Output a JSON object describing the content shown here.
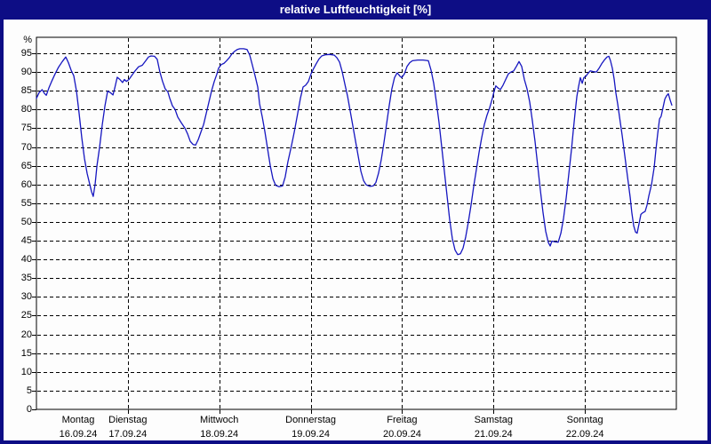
{
  "window": {
    "title": "relative Luftfeuchtigkeit [%]"
  },
  "colors": {
    "title_bar": "#0d0d85",
    "title_text": "#ffffff",
    "window_border": "#0d0d85",
    "background": "#fdfdfd",
    "grid": "#000000",
    "plot_line": "#1616c0"
  },
  "chart_data": {
    "type": "line",
    "title": "relative Luftfeuchtigkeit [%]",
    "ylabel": "%",
    "ylim": [
      0,
      95
    ],
    "ytick_step": 5,
    "yticks": [
      0,
      5,
      10,
      15,
      20,
      25,
      30,
      35,
      40,
      45,
      50,
      55,
      60,
      65,
      70,
      75,
      80,
      85,
      90,
      95
    ],
    "grid_style": "dashed",
    "legend": "none",
    "x_range_hours": [
      0,
      168
    ],
    "x_days": [
      {
        "name": "Montag",
        "date": "16.09.24"
      },
      {
        "name": "Dienstag",
        "date": "17.09.24"
      },
      {
        "name": "Mittwoch",
        "date": "18.09.24"
      },
      {
        "name": "Donnerstag",
        "date": "19.09.24"
      },
      {
        "name": "Freitag",
        "date": "20.09.24"
      },
      {
        "name": "Samstag",
        "date": "21.09.24"
      },
      {
        "name": "Sonntag",
        "date": "22.09.24"
      }
    ],
    "series": [
      {
        "name": "relative Luftfeuchtigkeit [%]",
        "color": "#1616c0",
        "points_hours_percent": [
          [
            0,
            83
          ],
          [
            0.7,
            84.5
          ],
          [
            1.5,
            85.3
          ],
          [
            2.1,
            84.3
          ],
          [
            2.6,
            83.8
          ],
          [
            3.3,
            85.8
          ],
          [
            4,
            87.5
          ],
          [
            4.9,
            89.5
          ],
          [
            5.8,
            91.3
          ],
          [
            6.8,
            92.8
          ],
          [
            7.7,
            94
          ],
          [
            8.4,
            92.5
          ],
          [
            9.1,
            90.5
          ],
          [
            9.8,
            89
          ],
          [
            10.5,
            85
          ],
          [
            11.2,
            79
          ],
          [
            11.9,
            72.5
          ],
          [
            12.6,
            67
          ],
          [
            13.3,
            63
          ],
          [
            14,
            60
          ],
          [
            14.5,
            58
          ],
          [
            14.9,
            56.8
          ],
          [
            15.4,
            60
          ],
          [
            15.9,
            65
          ],
          [
            16.6,
            70
          ],
          [
            17.3,
            76
          ],
          [
            18,
            81
          ],
          [
            18.7,
            84.9
          ],
          [
            19.4,
            84.5
          ],
          [
            20.1,
            83.9
          ],
          [
            20.5,
            85.5
          ],
          [
            21.2,
            88.6
          ],
          [
            21.9,
            88
          ],
          [
            22.6,
            87.2
          ],
          [
            23.1,
            88
          ],
          [
            23.6,
            87.5
          ],
          [
            24.3,
            88
          ],
          [
            25,
            89
          ],
          [
            25.9,
            90.3
          ],
          [
            26.8,
            91.4
          ],
          [
            27.8,
            91.8
          ],
          [
            28.7,
            93
          ],
          [
            29.4,
            94
          ],
          [
            30.1,
            94.3
          ],
          [
            31,
            94.2
          ],
          [
            31.7,
            93.4
          ],
          [
            32.4,
            90
          ],
          [
            33.1,
            87.5
          ],
          [
            33.8,
            85.5
          ],
          [
            34.5,
            84.7
          ],
          [
            35,
            83
          ],
          [
            35.7,
            81
          ],
          [
            36.4,
            80
          ],
          [
            37.1,
            78
          ],
          [
            38,
            76.5
          ],
          [
            39,
            75
          ],
          [
            39.7,
            73.5
          ],
          [
            40.4,
            71.5
          ],
          [
            41.1,
            70.7
          ],
          [
            41.8,
            70.5
          ],
          [
            42.5,
            72
          ],
          [
            43.2,
            74
          ],
          [
            43.9,
            76
          ],
          [
            44.6,
            79
          ],
          [
            45.3,
            82
          ],
          [
            46,
            85
          ],
          [
            46.7,
            87.5
          ],
          [
            47.4,
            89.5
          ],
          [
            47.8,
            91
          ],
          [
            48.5,
            92
          ],
          [
            49.2,
            92.3
          ],
          [
            49.9,
            93
          ],
          [
            50.6,
            93.8
          ],
          [
            51.3,
            94.8
          ],
          [
            52,
            95.5
          ],
          [
            52.7,
            96
          ],
          [
            53.4,
            96.2
          ],
          [
            54.4,
            96.2
          ],
          [
            55.3,
            96
          ],
          [
            56,
            94.5
          ],
          [
            56.7,
            91.8
          ],
          [
            57.4,
            89
          ],
          [
            58.1,
            86
          ],
          [
            58.6,
            81.5
          ],
          [
            59.3,
            78
          ],
          [
            60,
            74
          ],
          [
            60.7,
            69.5
          ],
          [
            61.4,
            65
          ],
          [
            62.1,
            61.5
          ],
          [
            62.8,
            59.8
          ],
          [
            63.7,
            59.4
          ],
          [
            64.6,
            59.6
          ],
          [
            65.3,
            62
          ],
          [
            66,
            66
          ],
          [
            67,
            70.5
          ],
          [
            67.7,
            74
          ],
          [
            68.6,
            79
          ],
          [
            69.3,
            83
          ],
          [
            70,
            86
          ],
          [
            70.7,
            86.5
          ],
          [
            71.4,
            87.5
          ],
          [
            72.1,
            89.5
          ],
          [
            72.8,
            91
          ],
          [
            73.5,
            92.3
          ],
          [
            74.2,
            93.5
          ],
          [
            74.9,
            94.3
          ],
          [
            75.8,
            94.6
          ],
          [
            77,
            94.7
          ],
          [
            78.2,
            94.5
          ],
          [
            78.9,
            93.8
          ],
          [
            79.6,
            92.6
          ],
          [
            80.3,
            90
          ],
          [
            81,
            86.7
          ],
          [
            81.7,
            83.5
          ],
          [
            82.4,
            79.5
          ],
          [
            83.1,
            75.5
          ],
          [
            83.8,
            71.5
          ],
          [
            84.5,
            67.5
          ],
          [
            85.2,
            63.5
          ],
          [
            85.9,
            61
          ],
          [
            86.6,
            59.9
          ],
          [
            87.5,
            59.5
          ],
          [
            88.4,
            59.6
          ],
          [
            89.1,
            60.5
          ],
          [
            89.8,
            63
          ],
          [
            90.5,
            66.5
          ],
          [
            91.2,
            71
          ],
          [
            91.9,
            76
          ],
          [
            92.6,
            81
          ],
          [
            93.3,
            85.5
          ],
          [
            94,
            88.5
          ],
          [
            94.7,
            89.8
          ],
          [
            95.4,
            88.9
          ],
          [
            95.9,
            88.5
          ],
          [
            96.6,
            89.5
          ],
          [
            97.3,
            91.5
          ],
          [
            98,
            92.5
          ],
          [
            98.7,
            93
          ],
          [
            100.1,
            93.2
          ],
          [
            101.5,
            93.2
          ],
          [
            102.9,
            93
          ],
          [
            103.6,
            90.5
          ],
          [
            104.3,
            87
          ],
          [
            105,
            82
          ],
          [
            105.7,
            76.5
          ],
          [
            106.4,
            70
          ],
          [
            107.1,
            63.5
          ],
          [
            107.8,
            57
          ],
          [
            108.5,
            50.5
          ],
          [
            109.2,
            45.5
          ],
          [
            109.9,
            42.5
          ],
          [
            110.6,
            41.3
          ],
          [
            111.3,
            41.5
          ],
          [
            112,
            43
          ],
          [
            112.7,
            46
          ],
          [
            113.4,
            50
          ],
          [
            114.1,
            54.5
          ],
          [
            114.8,
            59.5
          ],
          [
            115.5,
            64
          ],
          [
            116.2,
            68.5
          ],
          [
            116.9,
            72.5
          ],
          [
            117.6,
            76
          ],
          [
            118.3,
            78.5
          ],
          [
            119,
            80.5
          ],
          [
            119.7,
            83
          ],
          [
            120.2,
            85
          ],
          [
            120.6,
            86.3
          ],
          [
            121.1,
            85.8
          ],
          [
            121.8,
            85.3
          ],
          [
            122.5,
            86.5
          ],
          [
            123.2,
            88
          ],
          [
            123.9,
            89.5
          ],
          [
            124.6,
            90
          ],
          [
            125.3,
            90.3
          ],
          [
            126,
            91.5
          ],
          [
            126.7,
            92.8
          ],
          [
            127.4,
            91.5
          ],
          [
            128.1,
            88
          ],
          [
            128.8,
            85.5
          ],
          [
            129.5,
            82
          ],
          [
            130.2,
            77
          ],
          [
            130.9,
            71.5
          ],
          [
            131.6,
            65
          ],
          [
            132.3,
            58.5
          ],
          [
            133,
            52.5
          ],
          [
            133.7,
            47.5
          ],
          [
            134.4,
            44.5
          ],
          [
            134.9,
            43.6
          ],
          [
            135.3,
            44.9
          ],
          [
            136,
            44.7
          ],
          [
            137,
            44.6
          ],
          [
            137.7,
            47
          ],
          [
            138.4,
            51
          ],
          [
            139.1,
            56.5
          ],
          [
            139.8,
            63
          ],
          [
            140.5,
            69.5
          ],
          [
            140.9,
            74
          ],
          [
            141.4,
            79
          ],
          [
            141.9,
            83.5
          ],
          [
            142.3,
            86
          ],
          [
            142.8,
            88.5
          ],
          [
            143.3,
            87
          ],
          [
            143.7,
            88.5
          ],
          [
            144.2,
            88.8
          ],
          [
            144.7,
            89.5
          ],
          [
            145.4,
            90.3
          ],
          [
            146.3,
            90.1
          ],
          [
            147,
            90
          ],
          [
            147.7,
            91
          ],
          [
            148.4,
            92.2
          ],
          [
            149.1,
            93.2
          ],
          [
            149.8,
            94
          ],
          [
            150.3,
            94.2
          ],
          [
            150.7,
            93
          ],
          [
            151.2,
            91
          ],
          [
            151.7,
            88
          ],
          [
            152.1,
            84.5
          ],
          [
            152.6,
            81.5
          ],
          [
            153.1,
            78
          ],
          [
            153.8,
            73
          ],
          [
            154.5,
            67.5
          ],
          [
            155.2,
            62
          ],
          [
            155.9,
            56.5
          ],
          [
            156.3,
            52.5
          ],
          [
            156.8,
            49
          ],
          [
            157.3,
            47.3
          ],
          [
            157.7,
            47
          ],
          [
            158.2,
            49.5
          ],
          [
            158.7,
            52
          ],
          [
            159.1,
            52.4
          ],
          [
            159.8,
            52.8
          ],
          [
            160.3,
            54.5
          ],
          [
            160.8,
            57
          ],
          [
            161.5,
            60
          ],
          [
            162.2,
            64.6
          ],
          [
            162.6,
            69
          ],
          [
            163.1,
            73.5
          ],
          [
            163.6,
            77.5
          ],
          [
            164,
            78.2
          ],
          [
            164.5,
            80.5
          ],
          [
            165,
            82.8
          ],
          [
            165.4,
            83.6
          ],
          [
            165.9,
            84.2
          ],
          [
            166.4,
            82.5
          ],
          [
            166.8,
            81.2
          ]
        ]
      }
    ]
  }
}
